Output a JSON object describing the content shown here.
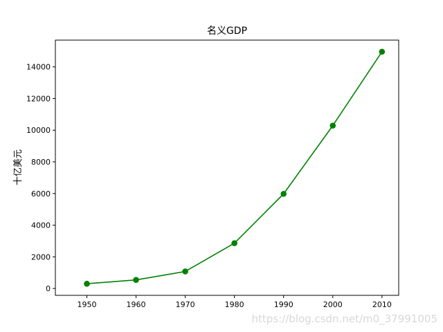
{
  "chart_data": {
    "type": "line",
    "title": "名义GDP",
    "xlabel": "",
    "ylabel": "十亿美元",
    "x": [
      1950,
      1960,
      1970,
      1980,
      1990,
      2000,
      2010
    ],
    "series": [
      {
        "values": [
          300.2,
          543.3,
          1075.9,
          2862.5,
          5979.6,
          10289.7,
          14958.3
        ],
        "color": "#008000",
        "marker": "circle"
      }
    ],
    "xticks": [
      "1950",
      "1960",
      "1970",
      "1980",
      "1990",
      "2000",
      "2010"
    ],
    "yticks": [
      "0",
      "2000",
      "4000",
      "6000",
      "8000",
      "10000",
      "12000",
      "14000"
    ],
    "xlim": [
      1943.6,
      2013.4
    ],
    "ylim": [
      -432.6,
      15691.1
    ],
    "grid": false,
    "legend": "none"
  },
  "watermark": "https://blog.csdn.net/m0_37991005"
}
